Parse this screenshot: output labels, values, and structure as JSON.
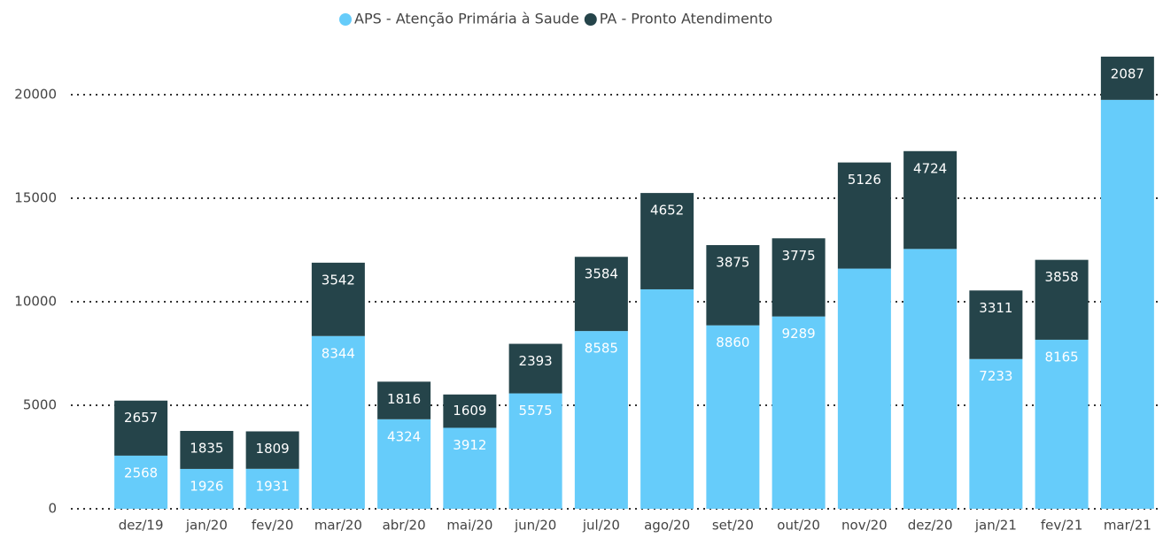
{
  "chart_data": {
    "type": "stacked-bar",
    "categories": [
      "dez/19",
      "jan/20",
      "fev/20",
      "mar/20",
      "abr/20",
      "mai/20",
      "jun/20",
      "jul/20",
      "ago/20",
      "set/20",
      "out/20",
      "nov/20",
      "dez/20",
      "jan/21",
      "fev/21",
      "mar/21"
    ],
    "series": [
      {
        "name": "APS - Atenção Primária à Saude",
        "color": "#66ccfa",
        "values": [
          2568,
          1926,
          1931,
          8344,
          4324,
          3912,
          5575,
          8585,
          10600,
          8860,
          9289,
          11600,
          12550,
          7233,
          8165,
          19750
        ],
        "value_labels": [
          "2568",
          "1926",
          "1931",
          "8344",
          "4324",
          "3912",
          "5575",
          "8585",
          null,
          "8860",
          "9289",
          null,
          null,
          "7233",
          "8165",
          null
        ]
      },
      {
        "name": "PA - Pronto Atendimento",
        "color": "#25444a",
        "values": [
          2657,
          1835,
          1809,
          3542,
          1816,
          1609,
          2393,
          3584,
          4652,
          3875,
          3775,
          5126,
          4724,
          3311,
          3858,
          2087
        ]
      }
    ],
    "ylim": [
      0,
      22000
    ],
    "yticks": [
      0,
      5000,
      10000,
      15000,
      20000
    ],
    "grid": true,
    "legend": "top"
  }
}
